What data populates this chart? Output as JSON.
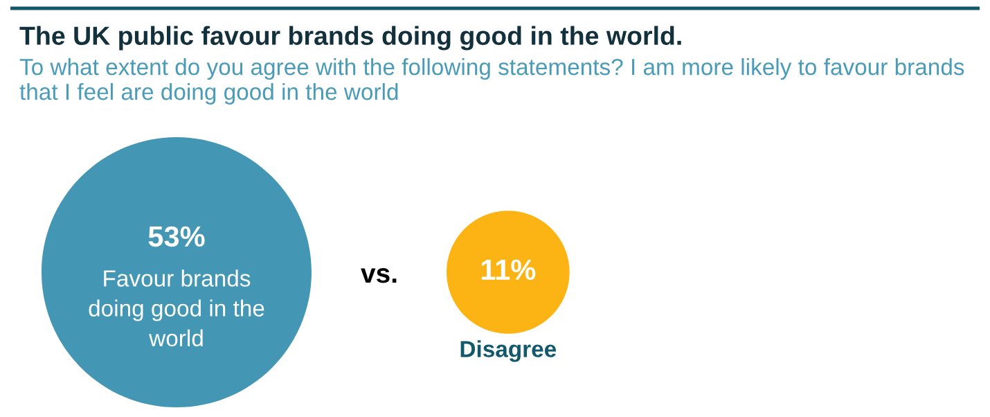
{
  "chart_data": {
    "type": "other",
    "title": "The UK public favour brands doing good in the world.",
    "subtitle": "To what extent do you agree with the following statements? I am more likely to favour brands that I feel are doing good in the world",
    "categories": [
      "Favour brands doing good in the world",
      "Disagree"
    ],
    "values": [
      53,
      11
    ],
    "value_labels": [
      "53%",
      "11%"
    ],
    "colors": [
      "#4397b4",
      "#fcb414"
    ],
    "annotations": [
      "vs."
    ]
  }
}
